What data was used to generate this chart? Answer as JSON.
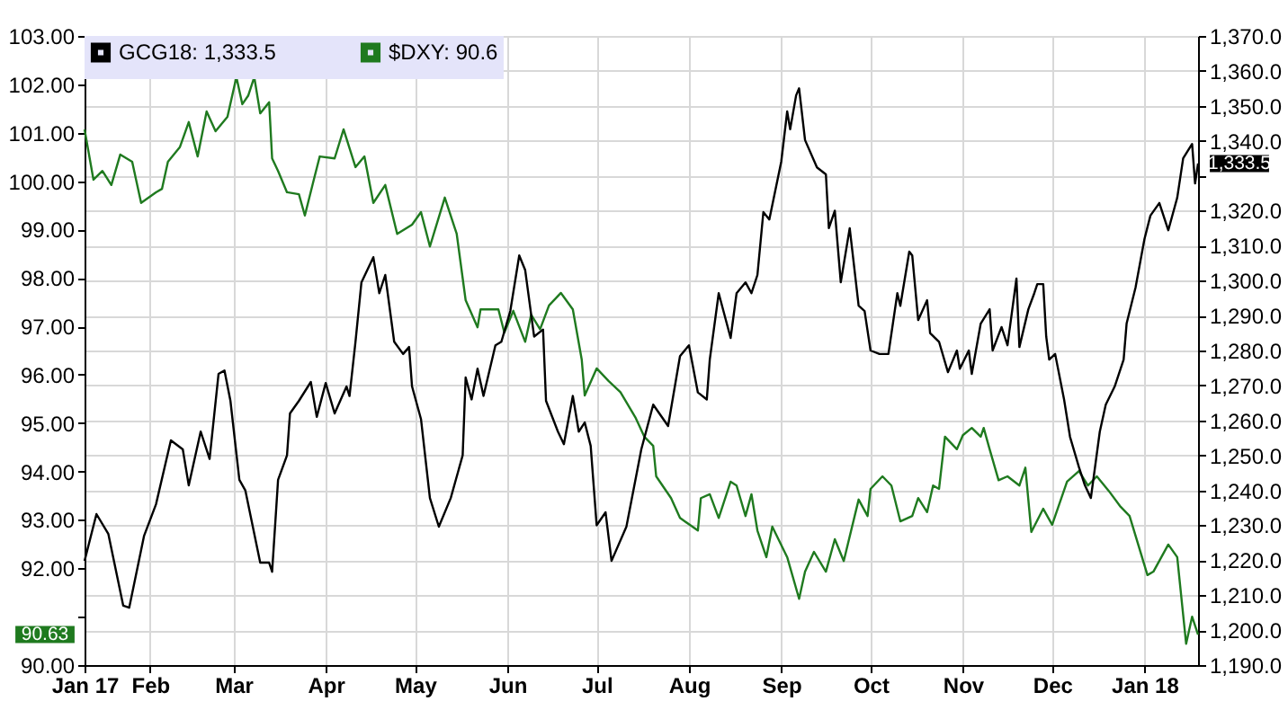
{
  "chart_data": {
    "type": "line",
    "legend": "top left",
    "grid": true,
    "xlim": [
      "2017-01-10",
      "2018-01-19"
    ],
    "xticks": [
      {
        "value": "2017-01-10",
        "label": "Jan 17"
      },
      {
        "value": "2017-02-01",
        "label": "Feb"
      },
      {
        "value": "2017-03-01",
        "label": "Mar"
      },
      {
        "value": "2017-04-01",
        "label": "Apr"
      },
      {
        "value": "2017-05-01",
        "label": "May"
      },
      {
        "value": "2017-06-01",
        "label": "Jun"
      },
      {
        "value": "2017-07-01",
        "label": "Jul"
      },
      {
        "value": "2017-08-01",
        "label": "Aug"
      },
      {
        "value": "2017-09-01",
        "label": "Sep"
      },
      {
        "value": "2017-10-01",
        "label": "Oct"
      },
      {
        "value": "2017-11-01",
        "label": "Nov"
      },
      {
        "value": "2017-12-01",
        "label": "Dec"
      },
      {
        "value": "2018-01-01",
        "label": "Jan 18"
      }
    ],
    "ylim": [
      90,
      103
    ],
    "yticks": [
      {
        "value": 90,
        "label": "90.00"
      },
      {
        "value": 91,
        "label": null
      },
      {
        "value": 92,
        "label": "92.00"
      },
      {
        "value": 93,
        "label": "93.00"
      },
      {
        "value": 94,
        "label": "94.00"
      },
      {
        "value": 95,
        "label": "95.00"
      },
      {
        "value": 96,
        "label": "96.00"
      },
      {
        "value": 97,
        "label": "97.00"
      },
      {
        "value": 98,
        "label": "98.00"
      },
      {
        "value": 99,
        "label": "99.00"
      },
      {
        "value": 100,
        "label": "100.00"
      },
      {
        "value": 101,
        "label": "101.00"
      },
      {
        "value": 102,
        "label": "102.00"
      },
      {
        "value": 103,
        "label": "103.00"
      }
    ],
    "y2lim": [
      1190,
      1370
    ],
    "y2ticks": [
      {
        "value": 1190,
        "label": "1,190.0"
      },
      {
        "value": 1200,
        "label": "1,200.0"
      },
      {
        "value": 1210,
        "label": "1,210.0"
      },
      {
        "value": 1220,
        "label": "1,220.0"
      },
      {
        "value": 1230,
        "label": "1,230.0"
      },
      {
        "value": 1240,
        "label": "1,240.0"
      },
      {
        "value": 1250,
        "label": "1,250.0"
      },
      {
        "value": 1260,
        "label": "1,260.0"
      },
      {
        "value": 1270,
        "label": "1,270.0"
      },
      {
        "value": 1280,
        "label": "1,280.0"
      },
      {
        "value": 1290,
        "label": "1,290.0"
      },
      {
        "value": 1300,
        "label": "1,300.0"
      },
      {
        "value": 1310,
        "label": "1,310.0"
      },
      {
        "value": 1320,
        "label": "1,320.0"
      },
      {
        "value": 1330,
        "label": null
      },
      {
        "value": 1340,
        "label": "1,340.0"
      },
      {
        "value": 1350,
        "label": "1,350.0"
      },
      {
        "value": 1360,
        "label": "1,360.0"
      },
      {
        "value": 1370,
        "label": "1,370.0"
      }
    ],
    "series": [
      {
        "name": "GCG18: 1,333.5",
        "color": "#000000",
        "axis": "y2",
        "x": [
          "2017-01-10",
          "2017-01-14",
          "2017-01-18",
          "2017-01-23",
          "2017-01-25",
          "2017-01-30",
          "2017-02-03",
          "2017-02-08",
          "2017-02-12",
          "2017-02-14",
          "2017-02-18",
          "2017-02-21",
          "2017-02-24",
          "2017-02-26",
          "2017-02-28",
          "2017-03-03",
          "2017-03-05",
          "2017-03-10",
          "2017-03-13",
          "2017-03-14",
          "2017-03-16",
          "2017-03-19",
          "2017-03-20",
          "2017-03-23",
          "2017-03-27",
          "2017-03-29",
          "2017-04-01",
          "2017-04-04",
          "2017-04-08",
          "2017-04-09",
          "2017-04-11",
          "2017-04-13",
          "2017-04-17",
          "2017-04-19",
          "2017-04-21",
          "2017-04-24",
          "2017-04-27",
          "2017-04-29",
          "2017-04-30",
          "2017-05-03",
          "2017-05-06",
          "2017-05-09",
          "2017-05-13",
          "2017-05-17",
          "2017-05-18",
          "2017-05-20",
          "2017-05-22",
          "2017-05-24",
          "2017-05-28",
          "2017-05-30",
          "2017-06-02",
          "2017-06-05",
          "2017-06-07",
          "2017-06-10",
          "2017-06-13",
          "2017-06-14",
          "2017-06-18",
          "2017-06-20",
          "2017-06-23",
          "2017-06-25",
          "2017-06-27",
          "2017-06-29",
          "2017-07-01",
          "2017-07-04",
          "2017-07-06",
          "2017-07-11",
          "2017-07-16",
          "2017-07-20",
          "2017-07-25",
          "2017-07-29",
          "2017-08-01",
          "2017-08-04",
          "2017-08-07",
          "2017-08-08",
          "2017-08-11",
          "2017-08-15",
          "2017-08-17",
          "2017-08-20",
          "2017-08-22",
          "2017-08-24",
          "2017-08-26",
          "2017-08-28",
          "2017-09-01",
          "2017-09-03",
          "2017-09-04",
          "2017-09-06",
          "2017-09-07",
          "2017-09-09",
          "2017-09-13",
          "2017-09-16",
          "2017-09-17",
          "2017-09-19",
          "2017-09-21",
          "2017-09-24",
          "2017-09-27",
          "2017-09-29",
          "2017-10-01",
          "2017-10-04",
          "2017-10-07",
          "2017-10-10",
          "2017-10-11",
          "2017-10-14",
          "2017-10-15",
          "2017-10-17",
          "2017-10-20",
          "2017-10-21",
          "2017-10-24",
          "2017-10-27",
          "2017-10-30",
          "2017-10-31",
          "2017-11-03",
          "2017-11-04",
          "2017-11-07",
          "2017-11-10",
          "2017-11-11",
          "2017-11-14",
          "2017-11-16",
          "2017-11-19",
          "2017-11-20",
          "2017-11-23",
          "2017-11-25",
          "2017-11-26",
          "2017-11-28",
          "2017-11-29",
          "2017-11-30",
          "2017-12-02",
          "2017-12-05",
          "2017-12-07",
          "2017-12-10",
          "2017-12-12",
          "2017-12-14",
          "2017-12-17",
          "2017-12-19",
          "2017-12-22",
          "2017-12-25",
          "2017-12-26",
          "2017-12-29",
          "2018-01-01",
          "2018-01-03",
          "2018-01-06",
          "2018-01-09",
          "2018-01-12",
          "2018-01-14",
          "2018-01-17",
          "2018-01-18",
          "2018-01-19"
        ],
        "values": [
          1219.8,
          1233.2,
          1227.5,
          1207,
          1206.4,
          1227,
          1236,
          1254.3,
          1251.7,
          1241.4,
          1256.8,
          1249,
          1273.3,
          1274.3,
          1265.6,
          1243,
          1240,
          1219.3,
          1219.3,
          1216.7,
          1243,
          1250,
          1262,
          1265.6,
          1271,
          1261,
          1270.7,
          1262,
          1269.7,
          1267,
          1282.5,
          1299.5,
          1306.7,
          1296.4,
          1301.6,
          1282.5,
          1279,
          1281,
          1269.7,
          1260.4,
          1237.8,
          1229.6,
          1237.8,
          1250,
          1272.3,
          1266,
          1274.8,
          1267,
          1281.5,
          1282.5,
          1291.3,
          1307.2,
          1303,
          1284,
          1286,
          1265.6,
          1256.8,
          1253.2,
          1267,
          1256.8,
          1259.4,
          1252.7,
          1230,
          1233.7,
          1219.8,
          1229.6,
          1251.7,
          1264.5,
          1258.4,
          1278.4,
          1281.5,
          1268,
          1266,
          1277.4,
          1296.4,
          1283.6,
          1296.4,
          1299.5,
          1296.4,
          1301.6,
          1319.6,
          1317.5,
          1334,
          1348.4,
          1343.3,
          1353,
          1355,
          1340.2,
          1332.4,
          1330.4,
          1315,
          1320,
          1299.5,
          1315,
          1292.8,
          1291.3,
          1280,
          1279,
          1279,
          1296.4,
          1292.8,
          1308.3,
          1307.2,
          1288.7,
          1294.4,
          1285,
          1282.5,
          1273.8,
          1280,
          1274.8,
          1280,
          1273.3,
          1287.7,
          1291.8,
          1280,
          1286.7,
          1281.5,
          1300.6,
          1281,
          1291.8,
          1296.4,
          1299,
          1299,
          1284,
          1277.4,
          1279,
          1266,
          1255.3,
          1246.6,
          1241.4,
          1237.8,
          1256.8,
          1264.5,
          1269.7,
          1277.4,
          1287.7,
          1298,
          1311.9,
          1318.6,
          1322.2,
          1314.4,
          1323.7,
          1335,
          1339.1,
          1327.8,
          1333.5
        ]
      },
      {
        "name": "$DXY: 90.6",
        "color": "#1f7a1f",
        "axis": "y",
        "x": [
          "2017-01-10",
          "2017-01-13",
          "2017-01-16",
          "2017-01-19",
          "2017-01-22",
          "2017-01-26",
          "2017-01-29",
          "2017-02-03",
          "2017-02-05",
          "2017-02-07",
          "2017-02-11",
          "2017-02-14",
          "2017-02-17",
          "2017-02-20",
          "2017-02-23",
          "2017-02-27",
          "2017-03-02",
          "2017-03-04",
          "2017-03-06",
          "2017-03-08",
          "2017-03-10",
          "2017-03-13",
          "2017-03-14",
          "2017-03-16",
          "2017-03-19",
          "2017-03-23",
          "2017-03-25",
          "2017-03-28",
          "2017-03-30",
          "2017-04-04",
          "2017-04-07",
          "2017-04-11",
          "2017-04-14",
          "2017-04-17",
          "2017-04-21",
          "2017-04-25",
          "2017-04-30",
          "2017-05-03",
          "2017-05-06",
          "2017-05-11",
          "2017-05-15",
          "2017-05-18",
          "2017-05-22",
          "2017-05-23",
          "2017-05-29",
          "2017-05-31",
          "2017-06-03",
          "2017-06-07",
          "2017-06-09",
          "2017-06-12",
          "2017-06-15",
          "2017-06-19",
          "2017-06-23",
          "2017-06-26",
          "2017-06-27",
          "2017-07-01",
          "2017-07-05",
          "2017-07-09",
          "2017-07-14",
          "2017-07-17",
          "2017-07-20",
          "2017-07-21",
          "2017-07-26",
          "2017-07-29",
          "2017-08-04",
          "2017-08-05",
          "2017-08-08",
          "2017-08-11",
          "2017-08-15",
          "2017-08-17",
          "2017-08-20",
          "2017-08-22",
          "2017-08-24",
          "2017-08-27",
          "2017-08-29",
          "2017-09-03",
          "2017-09-07",
          "2017-09-09",
          "2017-09-12",
          "2017-09-16",
          "2017-09-19",
          "2017-09-22",
          "2017-09-27",
          "2017-09-30",
          "2017-10-01",
          "2017-10-05",
          "2017-10-08",
          "2017-10-11",
          "2017-10-15",
          "2017-10-17",
          "2017-10-20",
          "2017-10-22",
          "2017-10-24",
          "2017-10-26",
          "2017-10-30",
          "2017-11-01",
          "2017-11-04",
          "2017-11-07",
          "2017-11-08",
          "2017-11-10",
          "2017-11-13",
          "2017-11-16",
          "2017-11-20",
          "2017-11-22",
          "2017-11-24",
          "2017-11-28",
          "2017-12-01",
          "2017-12-06",
          "2017-12-10",
          "2017-12-13",
          "2017-12-16",
          "2017-12-20",
          "2017-12-24",
          "2017-12-27",
          "2018-01-02",
          "2018-01-04",
          "2018-01-09",
          "2018-01-12",
          "2018-01-15",
          "2018-01-17",
          "2018-01-19"
        ],
        "values": [
          101.07,
          100.03,
          100.21,
          99.92,
          100.55,
          100.4,
          99.55,
          99.77,
          99.84,
          100.4,
          100.7,
          101.22,
          100.51,
          101.44,
          101.03,
          101.33,
          102.15,
          101.59,
          101.77,
          102.15,
          101.4,
          101.63,
          100.47,
          100.21,
          99.77,
          99.73,
          99.29,
          100.03,
          100.51,
          100.47,
          101.07,
          100.29,
          100.51,
          99.55,
          99.92,
          98.91,
          99.1,
          99.36,
          98.65,
          99.66,
          98.91,
          97.54,
          96.98,
          97.35,
          97.35,
          96.87,
          97.32,
          96.68,
          97.24,
          96.94,
          97.43,
          97.69,
          97.35,
          96.31,
          95.57,
          96.13,
          95.87,
          95.64,
          95.12,
          94.72,
          94.53,
          93.9,
          93.45,
          93.04,
          92.78,
          93.45,
          93.53,
          93.04,
          93.79,
          93.71,
          93.08,
          93.53,
          92.78,
          92.23,
          92.86,
          92.23,
          91.37,
          91.93,
          92.34,
          91.93,
          92.6,
          92.15,
          93.42,
          93.08,
          93.64,
          93.9,
          93.71,
          92.97,
          93.08,
          93.45,
          93.16,
          93.71,
          93.64,
          94.72,
          94.46,
          94.75,
          94.9,
          94.72,
          94.9,
          94.46,
          93.82,
          93.9,
          93.71,
          94.08,
          92.75,
          93.23,
          92.9,
          93.79,
          94.01,
          93.71,
          93.9,
          93.6,
          93.27,
          93.08,
          91.86,
          91.93,
          92.49,
          92.23,
          90.44,
          91.0,
          90.63
        ]
      }
    ],
    "annotations": [
      "1,333.5",
      "90.63"
    ]
  }
}
